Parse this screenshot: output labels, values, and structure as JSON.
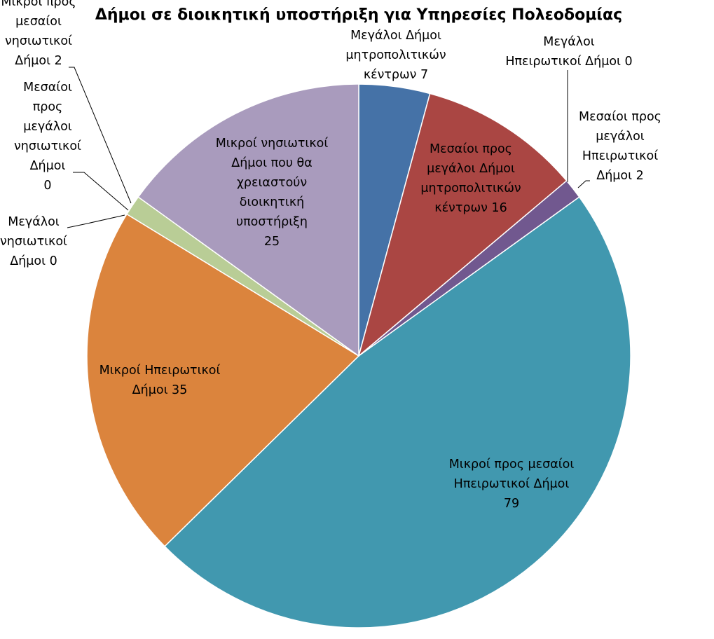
{
  "chart_data": {
    "type": "pie",
    "title": "Δήμοι σε διοικητική υποστήριξη για Υπηρεσίες Πολεοδομίας",
    "slices": [
      {
        "name": "Μεγάλοι Δήμοι μητροπολιτικών κέντρων",
        "value": 7,
        "color": "#4572A7",
        "label_lines": [
          "Μεγάλοι Δήμοι",
          "μητροπολιτικών",
          "κέντρων 7"
        ]
      },
      {
        "name": "Μεσαίοι προς μεγάλοι Δήμοι μητροπολιτικών κέντρων",
        "value": 16,
        "color": "#AA4643",
        "label_lines": [
          "Μεσαίοι προς",
          "μεγάλοι Δήμοι",
          "μητροπολιτικών",
          "κέντρων 16"
        ]
      },
      {
        "name": "Μεγάλοι Ηπειρωτικοί Δήμοι",
        "value": 0,
        "color": "#89A54E",
        "label_lines": [
          "Μεγάλοι",
          "Ηπειρωτικοί Δήμοι 0"
        ]
      },
      {
        "name": "Μεσαίοι προς μεγάλοι Ηπειρωτικοί Δήμοι",
        "value": 2,
        "color": "#71588F",
        "label_lines": [
          "Μεσαίοι προς",
          "μεγάλοι",
          "Ηπειρωτικοί",
          "Δήμοι  2"
        ]
      },
      {
        "name": "Μικροί προς μεσαίοι Ηπειρωτικοί Δήμοι",
        "value": 79,
        "color": "#4198AF",
        "label_lines": [
          "Μικροί προς μεσαίοι",
          "Ηπειρωτικοί Δήμοι",
          "79"
        ]
      },
      {
        "name": "Μικροί Ηπειρωτικοί Δήμοι",
        "value": 35,
        "color": "#DB843D",
        "label_lines": [
          "Μικροί Ηπειρωτικοί",
          "Δήμοι 35"
        ]
      },
      {
        "name": "Μεγάλοι νησιωτικοί Δήμοι",
        "value": 0,
        "color": "#93A9CF",
        "label_lines": [
          "Μεγάλοι",
          "νησιωτικοί",
          "Δήμοι 0"
        ]
      },
      {
        "name": "Μεσαίοι προς μεγάλοι νησιωτικοί Δήμοι",
        "value": 0,
        "color": "#D19392",
        "label_lines": [
          "Μεσαίοι",
          "προς",
          "μεγάλοι",
          "νησιωτικοί",
          "Δήμοι",
          "0"
        ]
      },
      {
        "name": "Μικροί προς μεσαίοι νησιωτικοί Δήμοι",
        "value": 2,
        "color": "#B9CD96",
        "label_lines": [
          "Μικροί προς",
          "μεσαίοι",
          "νησιωτικοί",
          "Δήμοι 2"
        ]
      },
      {
        "name": "Μικροί νησιωτικοί Δήμοι που θα χρειαστούν διοικητική υποστήριξη",
        "value": 25,
        "color": "#A99BBD",
        "label_lines": [
          "Μικροί νησιωτικοί",
          "Δήμοι που θα",
          "χρειαστούν",
          "διοικητική",
          "υποστήριξη",
          "25"
        ]
      }
    ],
    "legend": "none",
    "start_angle": "12 o'clock",
    "direction": "clockwise"
  }
}
